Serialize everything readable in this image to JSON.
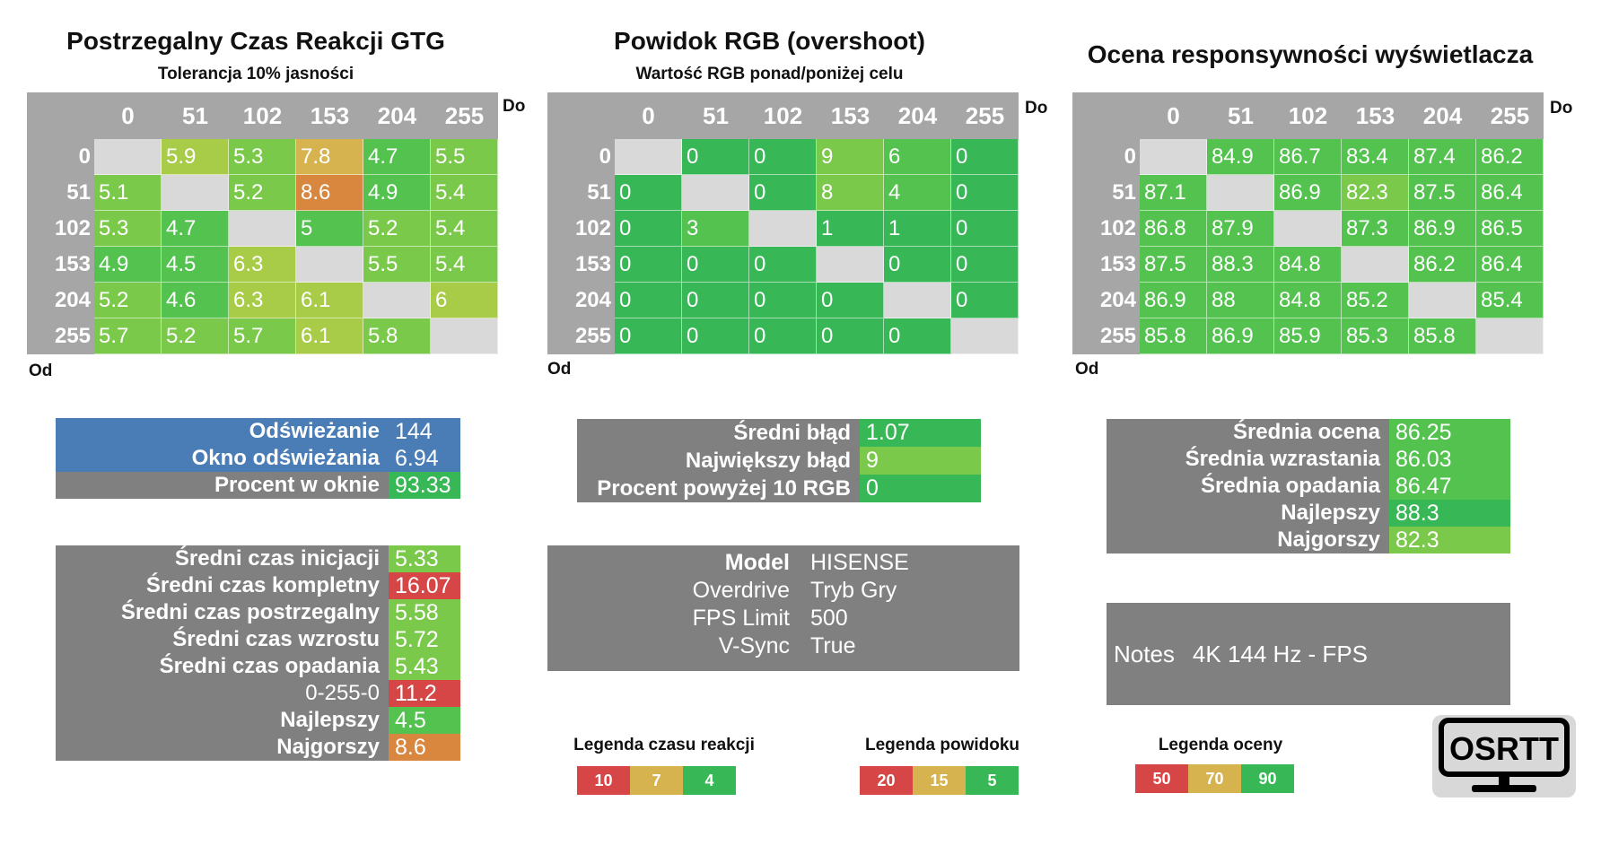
{
  "colors": {
    "grey_header": "#a6a6a6",
    "grey_panel": "#808080",
    "diag": "#d9d9d9",
    "blue": "#4a7db5",
    "green_dark": "#37b755",
    "green": "#53c24f",
    "green_light": "#7bc94a",
    "yellow_green": "#a8cc48",
    "gold": "#d6b34f",
    "orange": "#d9863e",
    "red": "#d64646"
  },
  "gtg": {
    "title": "Postrzegalny Czas Reakcji GTG",
    "subtitle": "Tolerancja 10% jasności",
    "do_label": "Do",
    "od_label": "Od",
    "cols": [
      "0",
      "51",
      "102",
      "153",
      "204",
      "255"
    ],
    "rows": [
      {
        "label": "0",
        "cells": [
          "",
          "5.9",
          "5.3",
          "7.8",
          "4.7",
          "5.5"
        ]
      },
      {
        "label": "51",
        "cells": [
          "5.1",
          "",
          "5.2",
          "8.6",
          "4.9",
          "5.4"
        ]
      },
      {
        "label": "102",
        "cells": [
          "5.3",
          "4.7",
          "",
          "5",
          "5.2",
          "5.4"
        ]
      },
      {
        "label": "153",
        "cells": [
          "4.9",
          "4.5",
          "6.3",
          "",
          "5.5",
          "5.4"
        ]
      },
      {
        "label": "204",
        "cells": [
          "5.2",
          "4.6",
          "6.3",
          "6.1",
          "",
          "6"
        ]
      },
      {
        "label": "255",
        "cells": [
          "5.7",
          "5.2",
          "5.7",
          "6.1",
          "5.8",
          ""
        ]
      }
    ],
    "colors": [
      [
        "diag",
        "yellow_green",
        "green_light",
        "gold",
        "green",
        "green_light"
      ],
      [
        "green_light",
        "diag",
        "green_light",
        "orange",
        "green",
        "green_light"
      ],
      [
        "green_light",
        "green",
        "diag",
        "green",
        "green_light",
        "green_light"
      ],
      [
        "green",
        "green",
        "yellow_green",
        "diag",
        "green_light",
        "green_light"
      ],
      [
        "green_light",
        "green",
        "yellow_green",
        "yellow_green",
        "diag",
        "yellow_green"
      ],
      [
        "green_light",
        "green_light",
        "green_light",
        "yellow_green",
        "green_light",
        "diag"
      ]
    ]
  },
  "overshoot": {
    "title": "Powidok RGB (overshoot)",
    "subtitle": "Wartość RGB ponad/poniżej celu",
    "do_label": "Do",
    "od_label": "Od",
    "cols": [
      "0",
      "51",
      "102",
      "153",
      "204",
      "255"
    ],
    "rows": [
      {
        "label": "0",
        "cells": [
          "",
          "0",
          "0",
          "9",
          "6",
          "0"
        ]
      },
      {
        "label": "51",
        "cells": [
          "0",
          "",
          "0",
          "8",
          "4",
          "0"
        ]
      },
      {
        "label": "102",
        "cells": [
          "0",
          "3",
          "",
          "1",
          "1",
          "0"
        ]
      },
      {
        "label": "153",
        "cells": [
          "0",
          "0",
          "0",
          "",
          "0",
          "0"
        ]
      },
      {
        "label": "204",
        "cells": [
          "0",
          "0",
          "0",
          "0",
          "",
          "0"
        ]
      },
      {
        "label": "255",
        "cells": [
          "0",
          "0",
          "0",
          "0",
          "0",
          ""
        ]
      }
    ],
    "colors": [
      [
        "diag",
        "green_dark",
        "green_dark",
        "green_light",
        "green",
        "green_dark"
      ],
      [
        "green_dark",
        "diag",
        "green_dark",
        "green_light",
        "green",
        "green_dark"
      ],
      [
        "green_dark",
        "green",
        "diag",
        "green_dark",
        "green_dark",
        "green_dark"
      ],
      [
        "green_dark",
        "green_dark",
        "green_dark",
        "diag",
        "green_dark",
        "green_dark"
      ],
      [
        "green_dark",
        "green_dark",
        "green_dark",
        "green_dark",
        "diag",
        "green_dark"
      ],
      [
        "green_dark",
        "green_dark",
        "green_dark",
        "green_dark",
        "green_dark",
        "diag"
      ]
    ]
  },
  "score": {
    "title": "Ocena responsywności wyświetlacza",
    "do_label": "Do",
    "od_label": "Od",
    "cols": [
      "0",
      "51",
      "102",
      "153",
      "204",
      "255"
    ],
    "rows": [
      {
        "label": "0",
        "cells": [
          "",
          "84.9",
          "86.7",
          "83.4",
          "87.4",
          "86.2"
        ]
      },
      {
        "label": "51",
        "cells": [
          "87.1",
          "",
          "86.9",
          "82.3",
          "87.5",
          "86.4"
        ]
      },
      {
        "label": "102",
        "cells": [
          "86.8",
          "87.9",
          "",
          "87.3",
          "86.9",
          "86.5"
        ]
      },
      {
        "label": "153",
        "cells": [
          "87.5",
          "88.3",
          "84.8",
          "",
          "86.2",
          "86.4"
        ]
      },
      {
        "label": "204",
        "cells": [
          "86.9",
          "88",
          "84.8",
          "85.2",
          "",
          "85.4"
        ]
      },
      {
        "label": "255",
        "cells": [
          "85.8",
          "86.9",
          "85.9",
          "85.3",
          "85.8",
          ""
        ]
      }
    ],
    "colors": [
      [
        "diag",
        "green",
        "green",
        "green",
        "green",
        "green"
      ],
      [
        "green",
        "diag",
        "green",
        "green_light",
        "green",
        "green"
      ],
      [
        "green",
        "green",
        "diag",
        "green",
        "green",
        "green"
      ],
      [
        "green",
        "green",
        "green",
        "diag",
        "green",
        "green"
      ],
      [
        "green",
        "green",
        "green",
        "green",
        "diag",
        "green"
      ],
      [
        "green",
        "green",
        "green",
        "green",
        "green",
        "diag"
      ]
    ]
  },
  "refresh": {
    "rows": [
      {
        "label": "Odświeżanie",
        "value": "144",
        "label_bg": "blue",
        "value_bg": "blue"
      },
      {
        "label": "Okno odświeżania",
        "value": "6.94",
        "label_bg": "blue",
        "value_bg": "blue"
      },
      {
        "label": "Procent w oknie",
        "value": "93.33",
        "label_bg": "grey_panel",
        "value_bg": "green_dark"
      }
    ]
  },
  "timing": {
    "rows": [
      {
        "label": "Średni czas inicjacji",
        "value": "5.33",
        "value_bg": "green_light"
      },
      {
        "label": "Średni czas kompletny",
        "value": "16.07",
        "value_bg": "red"
      },
      {
        "label": "Średni czas postrzegalny",
        "value": "5.58",
        "value_bg": "green_light"
      },
      {
        "label": "Średni czas wzrostu",
        "value": "5.72",
        "value_bg": "green_light"
      },
      {
        "label": "Średni czas opadania",
        "value": "5.43",
        "value_bg": "green_light"
      },
      {
        "label": "0-255-0",
        "value": "11.2",
        "value_bg": "red",
        "plain": true
      },
      {
        "label": "Najlepszy",
        "value": "4.5",
        "value_bg": "green"
      },
      {
        "label": "Najgorszy",
        "value": "8.6",
        "value_bg": "orange"
      }
    ]
  },
  "errors": {
    "rows": [
      {
        "label": "Średni błąd",
        "value": "1.07",
        "value_bg": "green_dark"
      },
      {
        "label": "Największy błąd",
        "value": "9",
        "value_bg": "green_light"
      },
      {
        "label": "Procent powyżej 10 RGB",
        "value": "0",
        "value_bg": "green_dark"
      }
    ]
  },
  "device": {
    "rows": [
      {
        "label": "Model",
        "value": "HISENSE",
        "bold": true
      },
      {
        "label": "Overdrive",
        "value": "Tryb Gry"
      },
      {
        "label": "FPS Limit",
        "value": "500"
      },
      {
        "label": "V-Sync",
        "value": "True"
      }
    ]
  },
  "scores": {
    "rows": [
      {
        "label": "Średnia ocena",
        "value": "86.25",
        "value_bg": "green"
      },
      {
        "label": "Średnia wzrastania",
        "value": "86.03",
        "value_bg": "green"
      },
      {
        "label": "Średnia opadania",
        "value": "86.47",
        "value_bg": "green"
      },
      {
        "label": "Najlepszy",
        "value": "88.3",
        "value_bg": "green_dark"
      },
      {
        "label": "Najgorszy",
        "value": "82.3",
        "value_bg": "green_light"
      }
    ]
  },
  "notes": {
    "label": "Notes",
    "value": "4K 144 Hz - FPS"
  },
  "legends": {
    "reaction": {
      "title": "Legenda czasu reakcji",
      "values": [
        "10",
        "7",
        "4"
      ],
      "colors": [
        "red",
        "gold",
        "green_dark"
      ]
    },
    "overshoot": {
      "title": "Legenda powidoku",
      "values": [
        "20",
        "15",
        "5"
      ],
      "colors": [
        "red",
        "gold",
        "green_dark"
      ]
    },
    "score": {
      "title": "Legenda oceny",
      "values": [
        "50",
        "70",
        "90"
      ],
      "colors": [
        "red",
        "gold",
        "green_dark"
      ]
    }
  },
  "logo": {
    "text": "OSRTT"
  }
}
